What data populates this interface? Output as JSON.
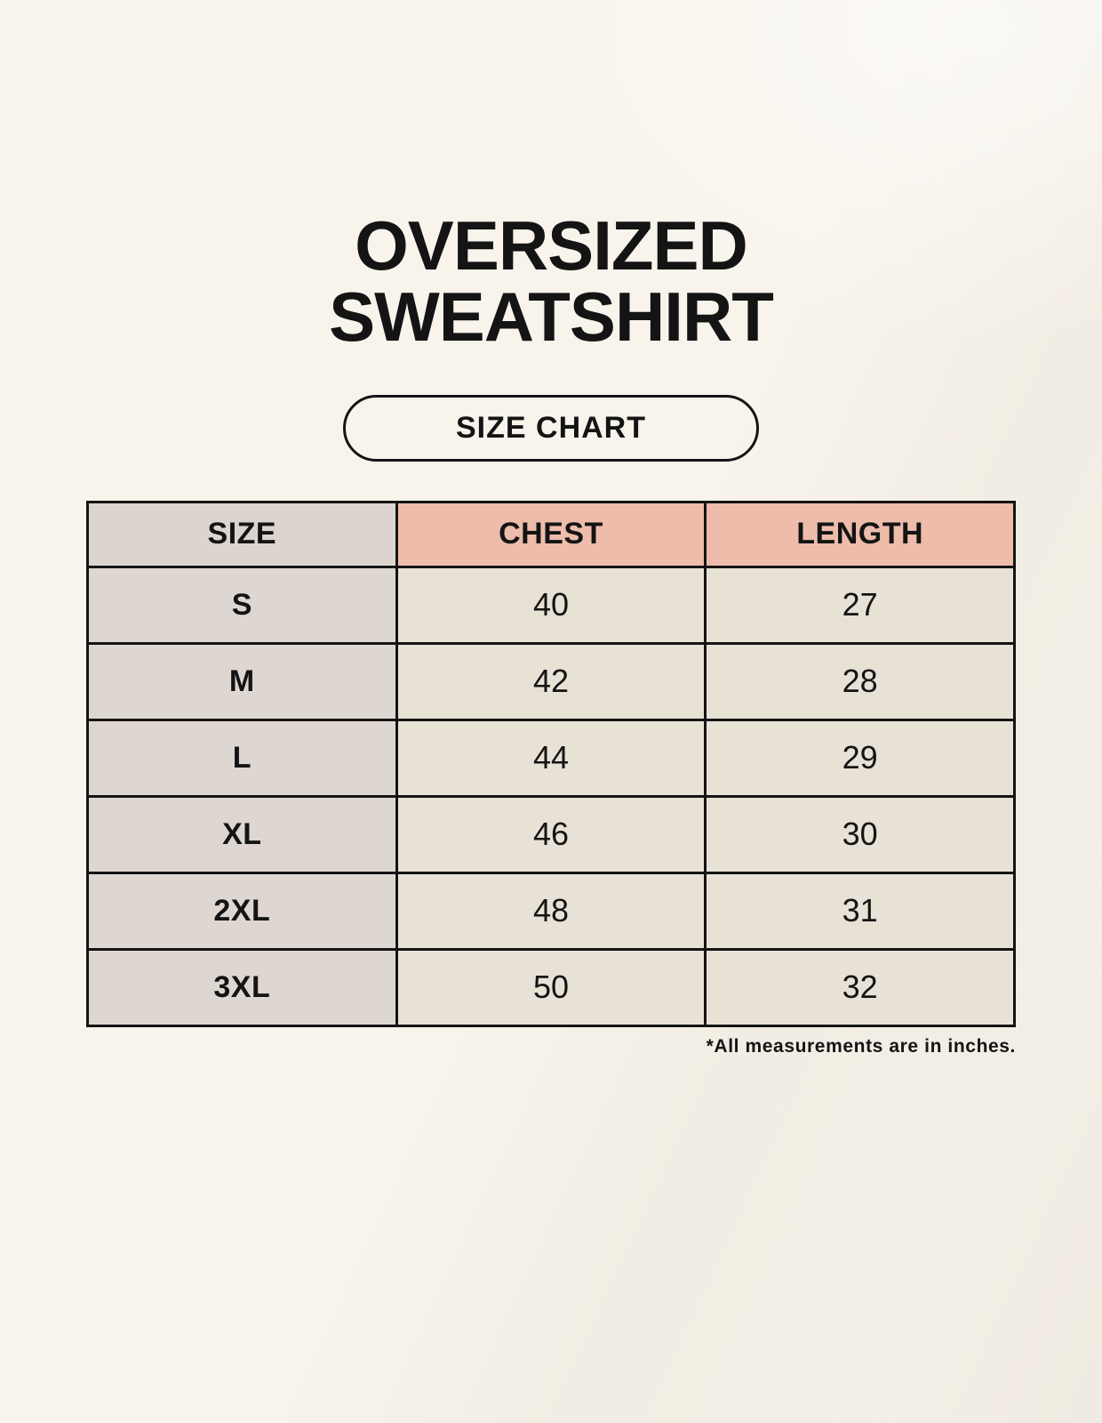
{
  "header": {
    "title_line1": "OVERSIZED",
    "title_line2": "SWEATSHIRT",
    "badge_label": "SIZE CHART"
  },
  "chart_data": {
    "type": "table",
    "title": "OVERSIZED SWEATSHIRT SIZE CHART",
    "columns": [
      "SIZE",
      "CHEST",
      "LENGTH"
    ],
    "rows": [
      [
        "S",
        "40",
        "27"
      ],
      [
        "M",
        "42",
        "28"
      ],
      [
        "L",
        "44",
        "29"
      ],
      [
        "XL",
        "46",
        "30"
      ],
      [
        "2XL",
        "48",
        "31"
      ],
      [
        "3XL",
        "50",
        "32"
      ]
    ],
    "units": "inches"
  },
  "footnote": "*All measurements are in inches.",
  "colors": {
    "background": "#f8f4ec",
    "header_pink": "#edbcab",
    "size_column_gray": "#ded7d1",
    "header_size_gray": "#dcd4cf",
    "cell_cream": "#e8e1d6",
    "border_black": "#141414",
    "text": "#141414"
  }
}
